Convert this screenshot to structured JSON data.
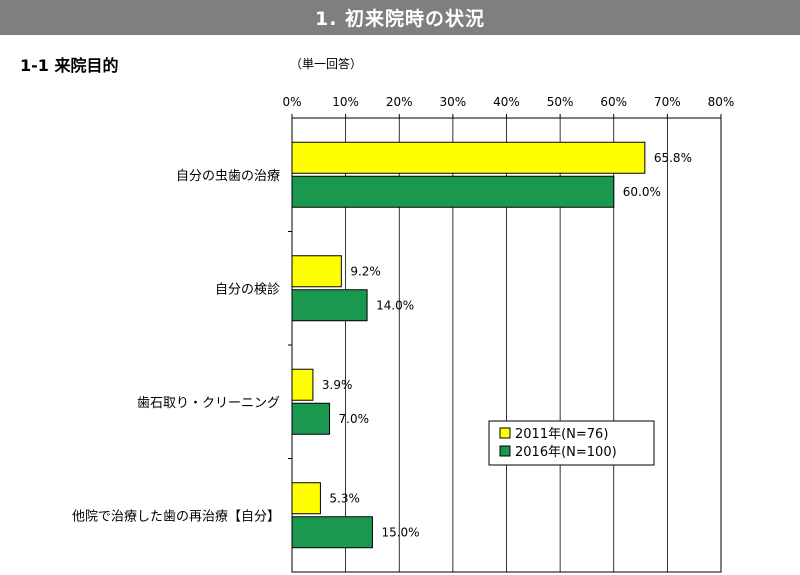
{
  "header": {
    "banner": "1. 初来院時の状況",
    "section_title": "1-1 来院目的",
    "answer_type": "（単一回答）"
  },
  "chart_data": {
    "type": "bar",
    "orientation": "horizontal",
    "categories": [
      "自分の虫歯の治療",
      "自分の検診",
      "歯石取り・クリーニング",
      "他院で治療した歯の再治療【自分】"
    ],
    "series": [
      {
        "name": "2011年(N=76)",
        "values": [
          65.8,
          9.2,
          3.9,
          5.3
        ],
        "labels": [
          "65.8%",
          "9.2%",
          "3.9%",
          "5.3%"
        ],
        "color": "#ffff00"
      },
      {
        "name": "2016年(N=100)",
        "values": [
          60.0,
          14.0,
          7.0,
          15.0
        ],
        "labels": [
          "60.0%",
          "14.0%",
          "7.0%",
          "15.0%"
        ],
        "color": "#1a9850"
      }
    ],
    "xlim": [
      0,
      80
    ],
    "x_ticks": [
      "0%",
      "10%",
      "20%",
      "30%",
      "40%",
      "50%",
      "60%",
      "70%",
      "80%"
    ],
    "grid": true,
    "legend_position": "bottom-right"
  }
}
